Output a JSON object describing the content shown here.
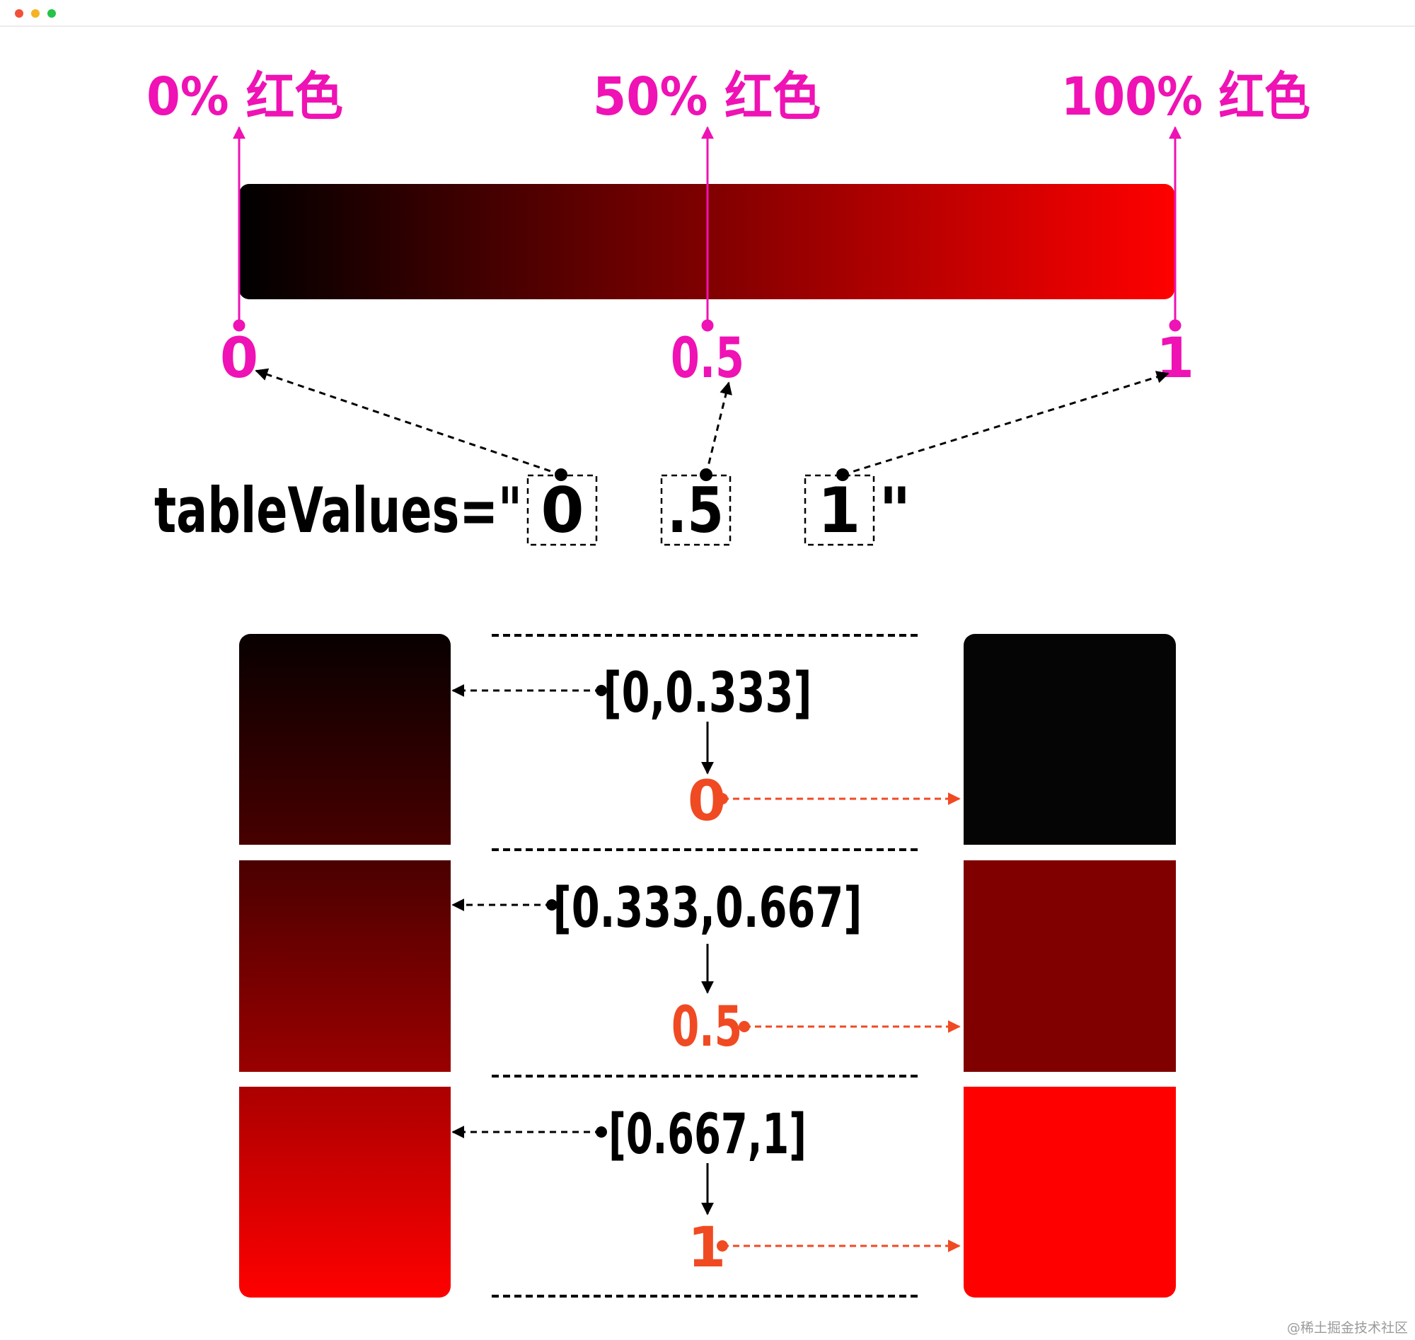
{
  "window": {
    "dots": [
      "#f05138",
      "#f5b324",
      "#27c24a"
    ]
  },
  "colors": {
    "label_pink": "#ef12b4",
    "result_orange": "#f04a23",
    "black": "#000000",
    "red": "#ff0000"
  },
  "gradient_bar": {
    "top_labels": [
      "0% 红色",
      "50% 红色",
      "100% 红色"
    ],
    "stop_labels": [
      "0",
      "0.5",
      "1"
    ]
  },
  "table_values": {
    "prefix": "tableValues=\"",
    "values": [
      "0",
      ".5",
      "1"
    ],
    "suffix": "\""
  },
  "mapping": [
    {
      "interval": "[0,0.333]",
      "result": "0",
      "input_from": "#080000",
      "input_to": "#470000",
      "output_color": "#050505"
    },
    {
      "interval": "[0.333,0.667]",
      "result": "0.5",
      "input_from": "#4a0000",
      "input_to": "#9a0000",
      "output_color": "#800000"
    },
    {
      "interval": "[0.667,1]",
      "result": "1",
      "input_from": "#ab0000",
      "input_to": "#ff0000",
      "output_color": "#ff0000"
    }
  ],
  "watermark": "@稀土掘金技术社区"
}
